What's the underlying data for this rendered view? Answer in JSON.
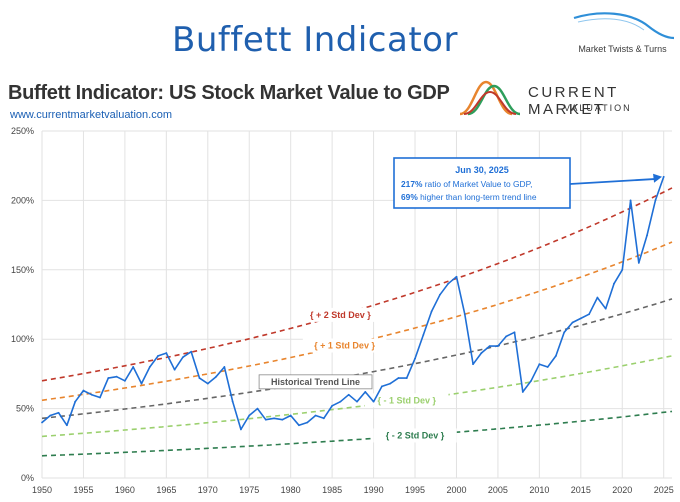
{
  "header": {
    "slide_title": "Buffett Indicator",
    "brand_name": "Market Twists & Turns"
  },
  "chart_header": {
    "title": "Buffett Indicator: US Stock Market Value to GDP",
    "url": "www.currentmarketvaluation.com",
    "logo_line1": "CURRENT MARKET",
    "logo_line2": "VALUATION"
  },
  "chart_data": {
    "type": "line",
    "xlim": [
      1950,
      2026
    ],
    "ylim": [
      0,
      250
    ],
    "x_ticks": [
      "1950",
      "1955",
      "1960",
      "1965",
      "1970",
      "1975",
      "1980",
      "1985",
      "1990",
      "1995",
      "2000",
      "2005",
      "2010",
      "2015",
      "2020",
      "2025"
    ],
    "y_ticks": [
      "0%",
      "50%",
      "100%",
      "150%",
      "200%",
      "250%"
    ],
    "grid": true,
    "series": [
      {
        "color": "#1f6fd6",
        "x": [
          1950,
          1951,
          1952,
          1953,
          1954,
          1955,
          1956,
          1957,
          1958,
          1959,
          1960,
          1961,
          1962,
          1963,
          1964,
          1965,
          1966,
          1967,
          1968,
          1969,
          1970,
          1971,
          1972,
          1973,
          1974,
          1975,
          1976,
          1977,
          1978,
          1979,
          1980,
          1981,
          1982,
          1983,
          1984,
          1985,
          1986,
          1987,
          1988,
          1989,
          1990,
          1991,
          1992,
          1993,
          1994,
          1995,
          1996,
          1997,
          1998,
          1999,
          2000,
          2001,
          2002,
          2003,
          2004,
          2005,
          2006,
          2007,
          2008,
          2009,
          2010,
          2011,
          2012,
          2013,
          2014,
          2015,
          2016,
          2017,
          2018,
          2019,
          2020,
          2021,
          2022,
          2023,
          2024,
          2025
        ],
        "values": [
          40,
          45,
          47,
          38,
          55,
          63,
          60,
          58,
          72,
          73,
          70,
          80,
          68,
          80,
          88,
          90,
          78,
          87,
          91,
          72,
          68,
          73,
          80,
          55,
          35,
          45,
          50,
          42,
          43,
          42,
          45,
          38,
          40,
          45,
          43,
          52,
          55,
          60,
          55,
          62,
          55,
          66,
          68,
          72,
          72,
          86,
          103,
          120,
          132,
          140,
          145,
          118,
          82,
          90,
          95,
          95,
          102,
          105,
          62,
          70,
          82,
          80,
          88,
          105,
          112,
          115,
          118,
          130,
          122,
          140,
          150,
          200,
          155,
          175,
          200,
          217
        ]
      }
    ],
    "bands": [
      {
        "name": "+ 2 Std Dev",
        "color": "#c0392b",
        "start": 70,
        "end": 209
      },
      {
        "name": "+ 1 Std Dev",
        "color": "#e8852e",
        "start": 56,
        "end": 170
      },
      {
        "name": "Historical Trend Line",
        "color": "#666666",
        "start": 43,
        "end": 129
      },
      {
        "name": "- 1 Std Dev",
        "color": "#9bd06e",
        "start": 30,
        "end": 88
      },
      {
        "name": "- 2 Std Dev",
        "color": "#2e7d4f",
        "start": 16,
        "end": 48
      }
    ],
    "annotation": {
      "date": "Jun 30, 2025",
      "line1_bold": "217%",
      "line1_rest": " ratio of Market Value to GDP,",
      "line2_bold": "69%",
      "line2_rest": " higher than long-term trend line"
    }
  }
}
